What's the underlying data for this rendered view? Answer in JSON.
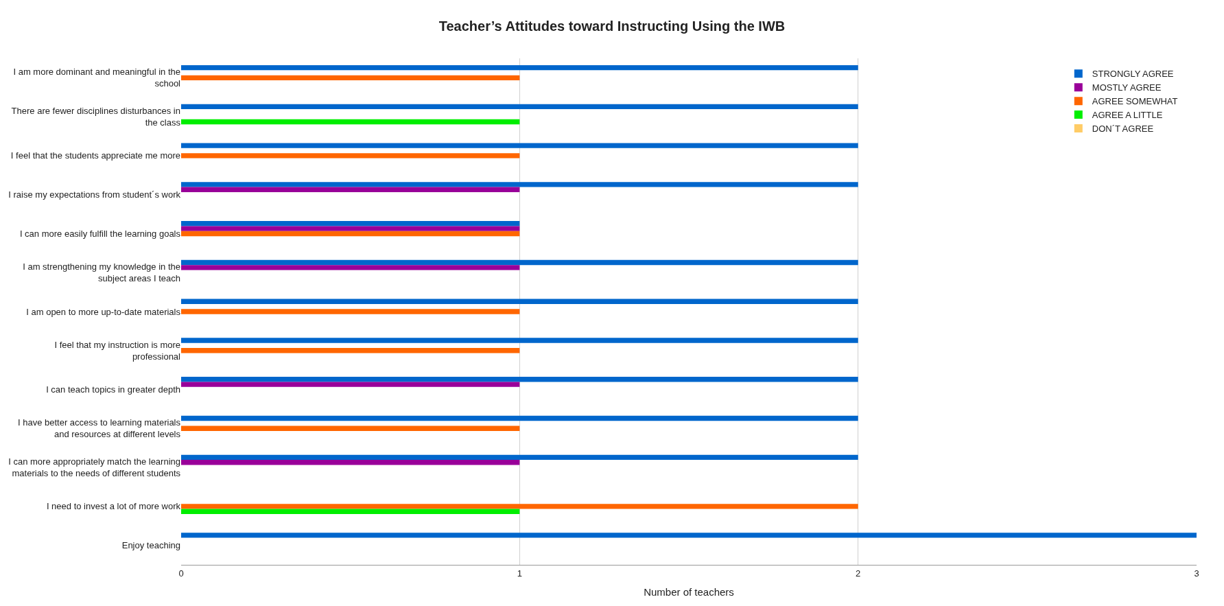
{
  "chart_data": {
    "type": "bar",
    "orientation": "horizontal",
    "title": "Teacher’s Attitudes toward Instructing Using the IWB",
    "xlabel": "Number of teachers",
    "categories": [
      "I am more dominant and meaningful in the school",
      "There are fewer disciplines disturbances in the class",
      "I feel that the students appreciate me more",
      "I raise my expectations from student´s work",
      "I can more easily fulfill the learning goals",
      "I am strengthening my knowledge in the subject areas I teach",
      "I am open to more up-to-date materials",
      "I feel that my instruction is more professional",
      "I can teach topics in greater depth",
      "I have better access to learning materials and resources at different levels",
      "I can more appropriately match the learning materials to the needs of different students",
      "I need to invest a lot of more work",
      "Enjoy teaching"
    ],
    "series": [
      {
        "name": "STRONGLY AGREE",
        "color": "#0066cc",
        "values": [
          2,
          2,
          2,
          2,
          1,
          2,
          2,
          2,
          2,
          2,
          2,
          0,
          3
        ]
      },
      {
        "name": "MOSTLY AGREE",
        "color": "#990099",
        "values": [
          0,
          0,
          0,
          1,
          1,
          1,
          0,
          0,
          1,
          0,
          1,
          0,
          0
        ]
      },
      {
        "name": "AGREE SOMEWHAT",
        "color": "#ff6600",
        "values": [
          1,
          0,
          1,
          0,
          1,
          0,
          1,
          1,
          0,
          1,
          0,
          2,
          0
        ]
      },
      {
        "name": "AGREE A LITTLE",
        "color": "#00ee00",
        "values": [
          0,
          1,
          0,
          0,
          0,
          0,
          0,
          0,
          0,
          0,
          0,
          1,
          0
        ]
      },
      {
        "name": "DON´T AGREE",
        "color": "#ffcc66",
        "values": [
          0,
          0,
          0,
          0,
          0,
          0,
          0,
          0,
          0,
          0,
          0,
          0,
          0
        ]
      }
    ],
    "xlim": [
      0,
      3
    ],
    "xticks": [
      0,
      1,
      2,
      3
    ],
    "grid": "x",
    "legend": "top right"
  }
}
